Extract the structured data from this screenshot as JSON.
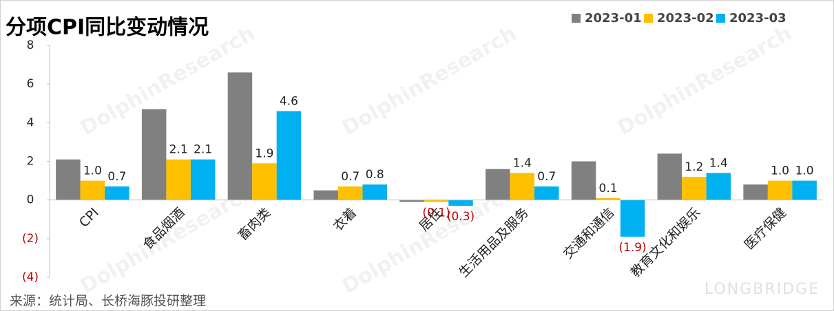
{
  "chart_data": {
    "type": "bar",
    "title": "分项CPI同比变动情况",
    "categories": [
      "CPI",
      "食品烟酒",
      "畜肉类",
      "衣着",
      "居住",
      "生活用品及服务",
      "交通和通信",
      "教育文化和娱乐",
      "医疗保健"
    ],
    "series": [
      {
        "name": "2023-01",
        "color": "#808080",
        "values": [
          2.1,
          4.7,
          6.6,
          0.5,
          -0.1,
          1.6,
          2.0,
          2.4,
          0.8
        ]
      },
      {
        "name": "2023-02",
        "color": "#FFC000",
        "values": [
          1.0,
          2.1,
          1.9,
          0.7,
          -0.1,
          1.4,
          0.1,
          1.2,
          1.0
        ],
        "value_labels": [
          "1.0",
          "2.1",
          "1.9",
          "0.7",
          "(0.1)",
          "1.4",
          "0.1",
          "1.2",
          "1.0"
        ]
      },
      {
        "name": "2023-03",
        "color": "#00B0F0",
        "values": [
          0.7,
          2.1,
          4.6,
          0.8,
          -0.3,
          0.7,
          -1.9,
          1.4,
          1.0
        ],
        "value_labels": [
          "0.7",
          "2.1",
          "4.6",
          "0.8",
          "(0.3)",
          "0.7",
          "(1.9)",
          "1.4",
          "1.0"
        ]
      }
    ],
    "ylim": [
      -4,
      8
    ],
    "yticks": [
      {
        "value": -4,
        "label": "(4)"
      },
      {
        "value": -2,
        "label": "(2)"
      },
      0,
      2,
      4,
      6,
      8
    ],
    "grid": false,
    "legend": "top-right",
    "source": "来源：统计局、长桥海豚投研整理",
    "watermarks": [
      "DolphinResearch",
      "LONGBRIDGE"
    ]
  }
}
